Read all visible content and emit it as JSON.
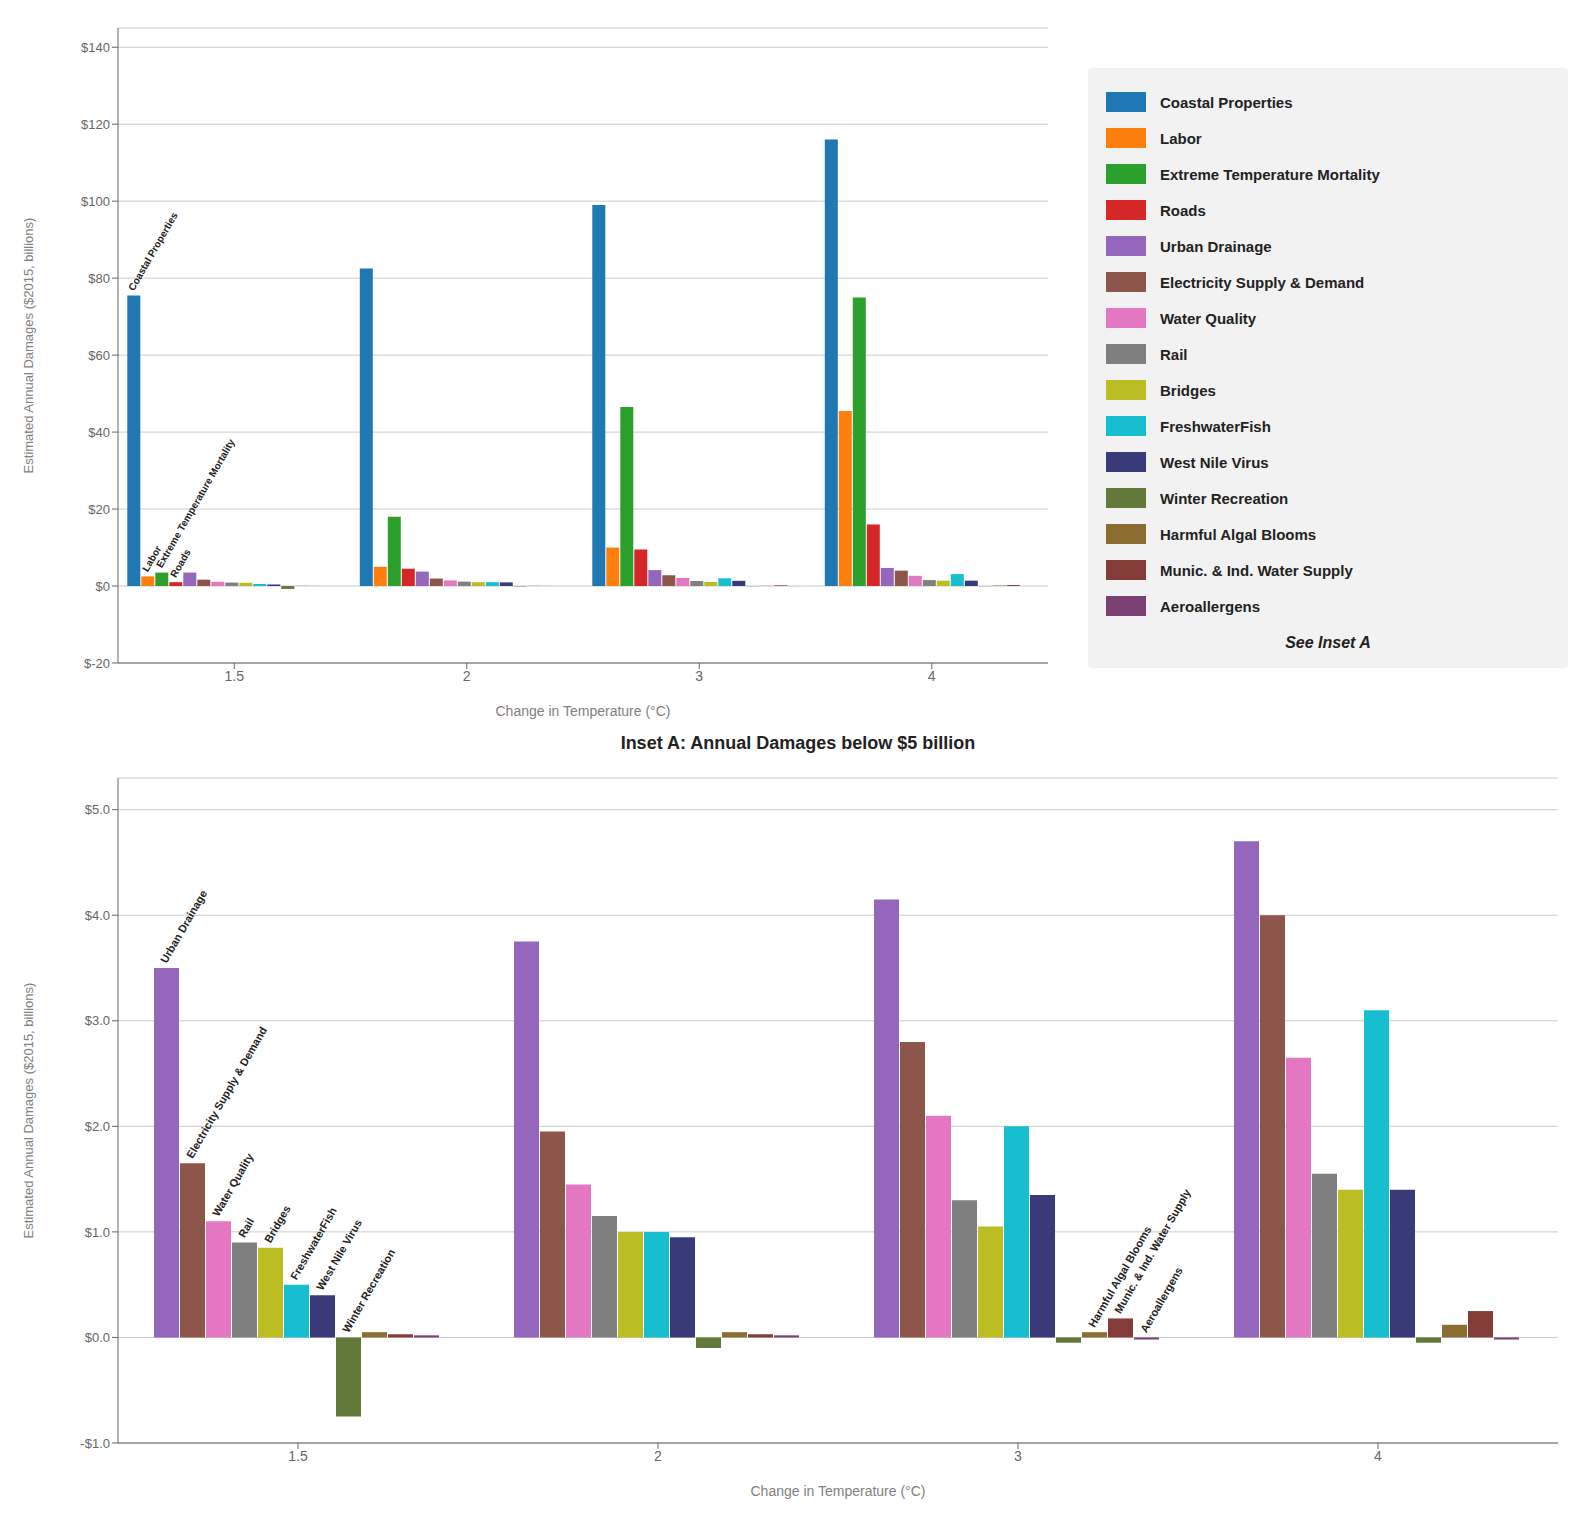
{
  "chart_data": [
    {
      "type": "bar",
      "categories": [
        "1.5",
        "2",
        "3",
        "4"
      ],
      "xlabel": "Change in Temperature (°C)",
      "ylabel": "Estimated Annual Damages ($2015, billions)",
      "ylim": [
        -20,
        145
      ],
      "yticks": [
        {
          "value": -20,
          "label": "$-20"
        },
        {
          "value": 0,
          "label": "$0"
        },
        {
          "value": 20,
          "label": "$20"
        },
        {
          "value": 40,
          "label": "$40"
        },
        {
          "value": 60,
          "label": "$60"
        },
        {
          "value": 80,
          "label": "$80"
        },
        {
          "value": 100,
          "label": "$100"
        },
        {
          "value": 120,
          "label": "$120"
        },
        {
          "value": 140,
          "label": "$140"
        }
      ],
      "grid": true,
      "legend": "right",
      "series": [
        {
          "name": "Coastal Properties",
          "color": "#1f77b4",
          "values": [
            75.5,
            82.5,
            99.0,
            116.0
          ]
        },
        {
          "name": "Labor",
          "color": "#ff7f0e",
          "values": [
            2.5,
            5.0,
            10.0,
            45.5
          ]
        },
        {
          "name": "Extreme Temperature Mortality",
          "color": "#2ca02c",
          "values": [
            3.5,
            18.0,
            46.5,
            75.0
          ]
        },
        {
          "name": "Roads",
          "color": "#d62728",
          "values": [
            1.0,
            4.5,
            9.5,
            16.0
          ]
        },
        {
          "name": "Urban Drainage",
          "color": "#9467bd",
          "values": [
            3.5,
            3.75,
            4.15,
            4.7
          ]
        },
        {
          "name": "Electricity Supply & Demand",
          "color": "#8c564b",
          "values": [
            1.65,
            1.95,
            2.8,
            4.0
          ]
        },
        {
          "name": "Water Quality",
          "color": "#e377c2",
          "values": [
            1.1,
            1.45,
            2.1,
            2.65
          ]
        },
        {
          "name": "Rail",
          "color": "#7f7f7f",
          "values": [
            0.9,
            1.15,
            1.3,
            1.55
          ]
        },
        {
          "name": "Bridges",
          "color": "#bcbd22",
          "values": [
            0.85,
            1.0,
            1.05,
            1.4
          ]
        },
        {
          "name": "FreshwaterFish",
          "color": "#17becf",
          "values": [
            0.5,
            1.0,
            2.0,
            3.1
          ]
        },
        {
          "name": "West Nile Virus",
          "color": "#393b79",
          "values": [
            0.4,
            0.95,
            1.35,
            1.4
          ]
        },
        {
          "name": "Winter Recreation",
          "color": "#637939",
          "values": [
            -0.75,
            -0.1,
            -0.05,
            -0.05
          ]
        },
        {
          "name": "Harmful Algal Blooms",
          "color": "#8c6d31",
          "values": [
            0.05,
            0.05,
            0.05,
            0.12
          ]
        },
        {
          "name": "Munic. & Ind. Water Supply",
          "color": "#843c39",
          "values": [
            0.03,
            0.03,
            0.18,
            0.25
          ]
        },
        {
          "name": "Aeroallergens",
          "color": "#7b4173",
          "values": [
            0.02,
            0.02,
            -0.02,
            -0.02
          ]
        }
      ],
      "annotations": [
        {
          "text": "Coastal Properties",
          "x": "1.5"
        },
        {
          "text": "Labor",
          "x": "1.5"
        },
        {
          "text": "Extreme Temperature Mortality",
          "x": "1.5"
        },
        {
          "text": "Roads",
          "x": "1.5"
        },
        {
          "text": "See Inset A"
        }
      ]
    },
    {
      "type": "bar",
      "title": "Inset A: Annual Damages below $5 billion",
      "categories": [
        "1.5",
        "2",
        "3",
        "4"
      ],
      "xlabel": "Change in Temperature (°C)",
      "ylabel": "Estimated Annual Damages ($2015, billions)",
      "ylim": [
        -1.0,
        5.3
      ],
      "yticks": [
        {
          "value": -1.0,
          "label": "-$1.0"
        },
        {
          "value": 0.0,
          "label": "$0.0"
        },
        {
          "value": 1.0,
          "label": "$1.0"
        },
        {
          "value": 2.0,
          "label": "$2.0"
        },
        {
          "value": 3.0,
          "label": "$3.0"
        },
        {
          "value": 4.0,
          "label": "$4.0"
        },
        {
          "value": 5.0,
          "label": "$5.0"
        }
      ],
      "grid": true,
      "series": [
        {
          "name": "Urban Drainage",
          "color": "#9467bd",
          "values": [
            3.5,
            3.75,
            4.15,
            4.7
          ]
        },
        {
          "name": "Electricity Supply & Demand",
          "color": "#8c564b",
          "values": [
            1.65,
            1.95,
            2.8,
            4.0
          ]
        },
        {
          "name": "Water Quality",
          "color": "#e377c2",
          "values": [
            1.1,
            1.45,
            2.1,
            2.65
          ]
        },
        {
          "name": "Rail",
          "color": "#7f7f7f",
          "values": [
            0.9,
            1.15,
            1.3,
            1.55
          ]
        },
        {
          "name": "Bridges",
          "color": "#bcbd22",
          "values": [
            0.85,
            1.0,
            1.05,
            1.4
          ]
        },
        {
          "name": "FreshwaterFish",
          "color": "#17becf",
          "values": [
            0.5,
            1.0,
            2.0,
            3.1
          ]
        },
        {
          "name": "West Nile Virus",
          "color": "#393b79",
          "values": [
            0.4,
            0.95,
            1.35,
            1.4
          ]
        },
        {
          "name": "Winter Recreation",
          "color": "#637939",
          "values": [
            -0.75,
            -0.1,
            -0.05,
            -0.05
          ]
        },
        {
          "name": "Harmful Algal Blooms",
          "color": "#8c6d31",
          "values": [
            0.05,
            0.05,
            0.05,
            0.12
          ]
        },
        {
          "name": "Munic. & Ind. Water Supply",
          "color": "#843c39",
          "values": [
            0.03,
            0.03,
            0.18,
            0.25
          ]
        },
        {
          "name": "Aeroallergens",
          "color": "#7b4173",
          "values": [
            0.02,
            0.02,
            -0.02,
            -0.02
          ]
        }
      ],
      "annotations": [
        {
          "text": "Urban Drainage",
          "x": "1.5"
        },
        {
          "text": "Electricity Supply & Demand",
          "x": "1.5"
        },
        {
          "text": "Water Quality",
          "x": "1.5"
        },
        {
          "text": "Rail",
          "x": "1.5"
        },
        {
          "text": "Bridges",
          "x": "1.5"
        },
        {
          "text": "FreshwaterFish",
          "x": "1.5"
        },
        {
          "text": "West Nile Virus",
          "x": "1.5"
        },
        {
          "text": "Winter Recreation",
          "x": "1.5"
        },
        {
          "text": "Harmful Algal Blooms",
          "x": "3"
        },
        {
          "text": "Munic. & Ind. Water Supply",
          "x": "3"
        },
        {
          "text": "Aeroallergens",
          "x": "3"
        }
      ]
    }
  ]
}
